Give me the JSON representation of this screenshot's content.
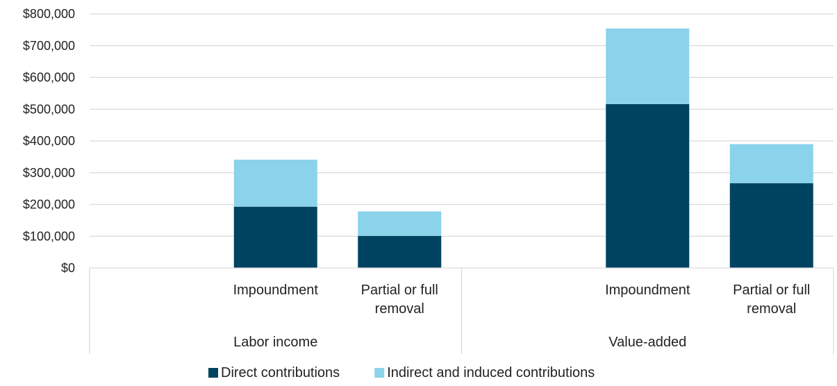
{
  "chart_data": {
    "type": "bar",
    "stacked": true,
    "groups": [
      {
        "label": "Labor income",
        "categories": [
          "Impoundment",
          "Partial or full removal"
        ]
      },
      {
        "label": "Value-added",
        "categories": [
          "Impoundment",
          "Partial or full removal"
        ]
      }
    ],
    "category_label_lines": {
      "Impoundment": [
        "Impoundment"
      ],
      "Partial or full removal": [
        "Partial or full",
        "removal"
      ]
    },
    "series": [
      {
        "name": "Direct contributions",
        "color": "#004360",
        "values": [
          193000,
          101000,
          516000,
          267000
        ]
      },
      {
        "name": "Indirect and induced contributions",
        "color": "#8ad3ea",
        "values": [
          148000,
          77000,
          238000,
          123000
        ]
      }
    ],
    "y_ticks": [
      "$0",
      "$100,000",
      "$200,000",
      "$300,000",
      "$400,000",
      "$500,000",
      "$600,000",
      "$700,000",
      "$800,000"
    ],
    "ylim": [
      0,
      800000
    ],
    "grid": true,
    "legend_position": "bottom"
  }
}
